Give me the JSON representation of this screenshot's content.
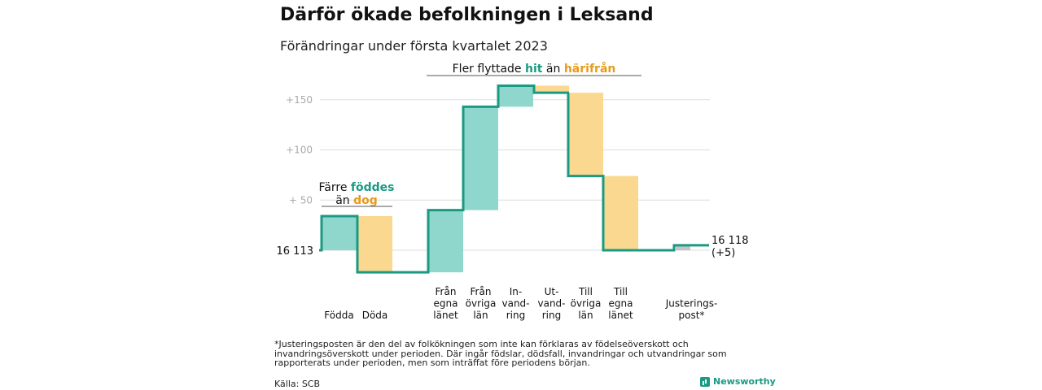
{
  "title": "Därför ökade befolkningen i Leksand",
  "subtitle": "Förändringar under första kvartalet 2023",
  "footnote": "*Justeringsposten är den del av folkökningen som inte kan förklaras av födelseöverskott och invandringsöverskott under perioden. Där ingår födslar, dödsfall, invandringar och utvandringar som rapporterats under perioden, men som inträffat före periodens början.",
  "source": "Källa: SCB",
  "brand": "Newsworthy",
  "colors": {
    "increase": "#8fd6cc",
    "decrease": "#fad890",
    "adjustment": "#c4c4c4",
    "line": "#1a9a82",
    "hit_text": "#1a9a82",
    "harifran_text": "#e89a1a",
    "grid": "#dddddd",
    "tick_text": "#aaaaaa"
  },
  "chart_data": {
    "type": "waterfall",
    "start_value": 16113,
    "start_label": "16 113",
    "end_label": [
      "16 118",
      "(+5)"
    ],
    "baseline_offset": 0,
    "y_ticks": [
      {
        "value": 50,
        "label": "+ 50"
      },
      {
        "value": 100,
        "label": "+100"
      },
      {
        "value": 150,
        "label": "+150"
      }
    ],
    "grid": true,
    "steps": [
      {
        "label": [
          "Födda"
        ],
        "change": 34,
        "kind": "increase"
      },
      {
        "label": [
          "Döda"
        ],
        "change": -56,
        "kind": "decrease"
      },
      {
        "label": [
          "Från",
          "egna",
          "länet"
        ],
        "change": 62,
        "kind": "increase"
      },
      {
        "label": [
          "Från",
          "övriga",
          "län"
        ],
        "change": 103,
        "kind": "increase"
      },
      {
        "label": [
          "In-",
          "vand-",
          "ring"
        ],
        "change": 21,
        "kind": "increase"
      },
      {
        "label": [
          "Ut-",
          "vand-",
          "ring"
        ],
        "change": -7,
        "kind": "decrease"
      },
      {
        "label": [
          "Till",
          "övriga",
          "län"
        ],
        "change": -83,
        "kind": "decrease"
      },
      {
        "label": [
          "Till",
          "egna",
          "länet"
        ],
        "change": -74,
        "kind": "decrease"
      },
      {
        "label": [
          "Justerings-",
          "post*"
        ],
        "change": 5,
        "kind": "adjustment"
      }
    ],
    "annotations": [
      {
        "id": "births",
        "parts": [
          {
            "line": 1,
            "text": "Färre ",
            "color": "#111111",
            "bold": false
          },
          {
            "line": 1,
            "text": "föddes",
            "color": "#1a9a82",
            "bold": true
          },
          {
            "line": 2,
            "text": "än ",
            "color": "#111111",
            "bold": false
          },
          {
            "line": 2,
            "text": "dog",
            "color": "#e89a1a",
            "bold": true
          }
        ]
      },
      {
        "id": "migration",
        "parts": [
          {
            "line": 1,
            "text": "Fler flyttade ",
            "color": "#111111",
            "bold": false
          },
          {
            "line": 1,
            "text": "hit",
            "color": "#1a9a82",
            "bold": true
          },
          {
            "line": 1,
            "text": " än ",
            "color": "#111111",
            "bold": false
          },
          {
            "line": 1,
            "text": "härifrån",
            "color": "#e89a1a",
            "bold": true
          }
        ]
      }
    ]
  }
}
